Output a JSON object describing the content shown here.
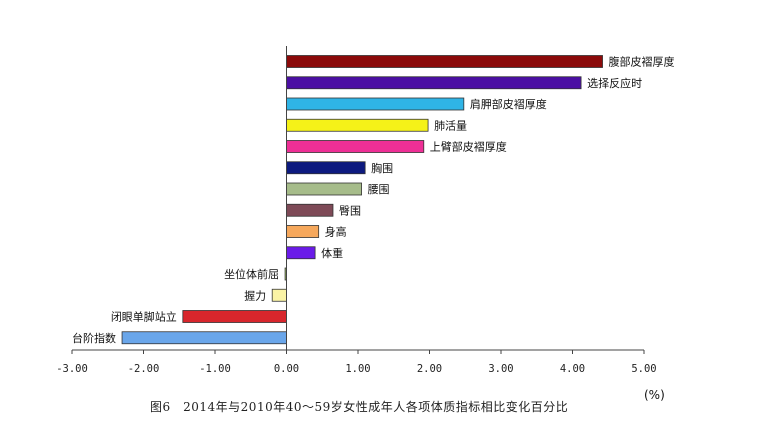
{
  "chart_data": {
    "type": "bar",
    "orientation": "horizontal",
    "xlim": [
      -3.0,
      5.0
    ],
    "x_ticks": [
      "-3.00",
      "-2.00",
      "-1.00",
      "0.00",
      "1.00",
      "2.00",
      "3.00",
      "4.00",
      "5.00"
    ],
    "unit_label": "(%)",
    "caption": "图6　2014年与2010年40～59岁女性成年人各项体质指标相比变化百分比",
    "bars": [
      {
        "label": "腹部皮褶厚度",
        "value": 4.42,
        "color": "#8b0a0a"
      },
      {
        "label": "选择反应时",
        "value": 4.12,
        "color": "#4b0fa3"
      },
      {
        "label": "肩胛部皮褶厚度",
        "value": 2.48,
        "color": "#2fb4e6"
      },
      {
        "label": "肺活量",
        "value": 1.98,
        "color": "#f5f218"
      },
      {
        "label": "上臂部皮褶厚度",
        "value": 1.92,
        "color": "#ee2f96"
      },
      {
        "label": "胸围",
        "value": 1.1,
        "color": "#0d1a7f"
      },
      {
        "label": "腰围",
        "value": 1.05,
        "color": "#a6bc8a"
      },
      {
        "label": "臀围",
        "value": 0.65,
        "color": "#7e4a57"
      },
      {
        "label": "身高",
        "value": 0.45,
        "color": "#f6a85c"
      },
      {
        "label": "体重",
        "value": 0.4,
        "color": "#6a1be8"
      },
      {
        "label": "坐位体前屈",
        "value": -0.02,
        "color": "#9fbf6a"
      },
      {
        "label": "握力",
        "value": -0.2,
        "color": "#faf3a5"
      },
      {
        "label": "闭眼单脚站立",
        "value": -1.45,
        "color": "#d8262c"
      },
      {
        "label": "台阶指数",
        "value": -2.3,
        "color": "#6aa6ea"
      }
    ]
  }
}
